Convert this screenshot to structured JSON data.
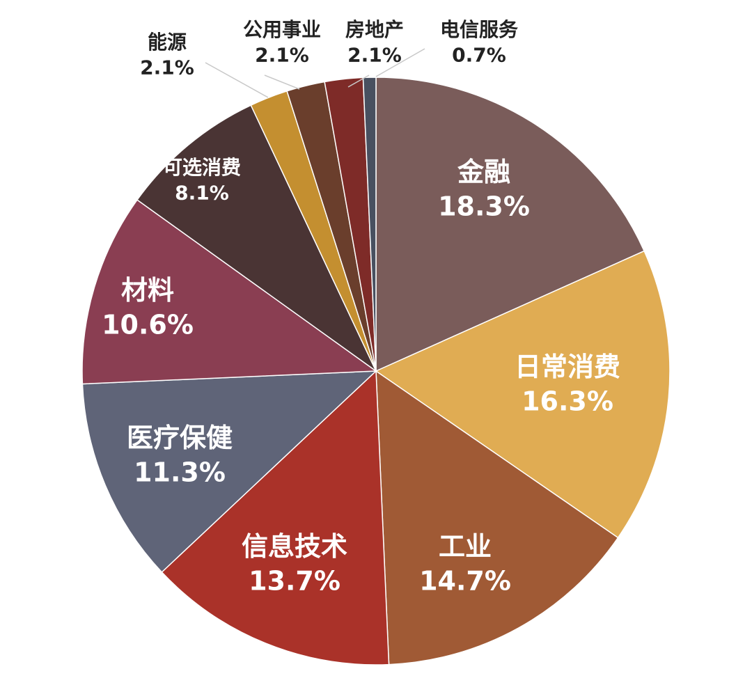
{
  "chart_data": {
    "type": "pie",
    "title": "",
    "legend": "none",
    "slices": [
      {
        "label": "金融",
        "value": 18.3,
        "display": "18.3%",
        "color": "#7a5c5a",
        "label_color": "#ffffff"
      },
      {
        "label": "日常消费",
        "value": 16.3,
        "display": "16.3%",
        "color": "#e0ac53",
        "label_color": "#ffffff"
      },
      {
        "label": "工业",
        "value": 14.7,
        "display": "14.7%",
        "color": "#a05a35",
        "label_color": "#ffffff"
      },
      {
        "label": "信息技术",
        "value": 13.7,
        "display": "13.7%",
        "color": "#aa3229",
        "label_color": "#ffffff"
      },
      {
        "label": "医疗保健",
        "value": 11.3,
        "display": "11.3%",
        "color": "#5f6478",
        "label_color": "#ffffff"
      },
      {
        "label": "材料",
        "value": 10.6,
        "display": "10.6%",
        "color": "#8a3e52",
        "label_color": "#ffffff"
      },
      {
        "label": "可选消费",
        "value": 8.1,
        "display": "8.1%",
        "color": "#4a3434",
        "label_color": "#ffffff"
      },
      {
        "label": "能源",
        "value": 2.1,
        "display": "2.1%",
        "color": "#c48f30",
        "label_color": "#222222"
      },
      {
        "label": "公用事业",
        "value": 2.1,
        "display": "2.1%",
        "color": "#6a3e2c",
        "label_color": "#222222"
      },
      {
        "label": "房地产",
        "value": 2.1,
        "display": "2.1%",
        "color": "#7e2b28",
        "label_color": "#222222"
      },
      {
        "label": "电信服务",
        "value": 0.7,
        "display": "0.7%",
        "color": "#485060",
        "label_color": "#222222"
      }
    ]
  }
}
